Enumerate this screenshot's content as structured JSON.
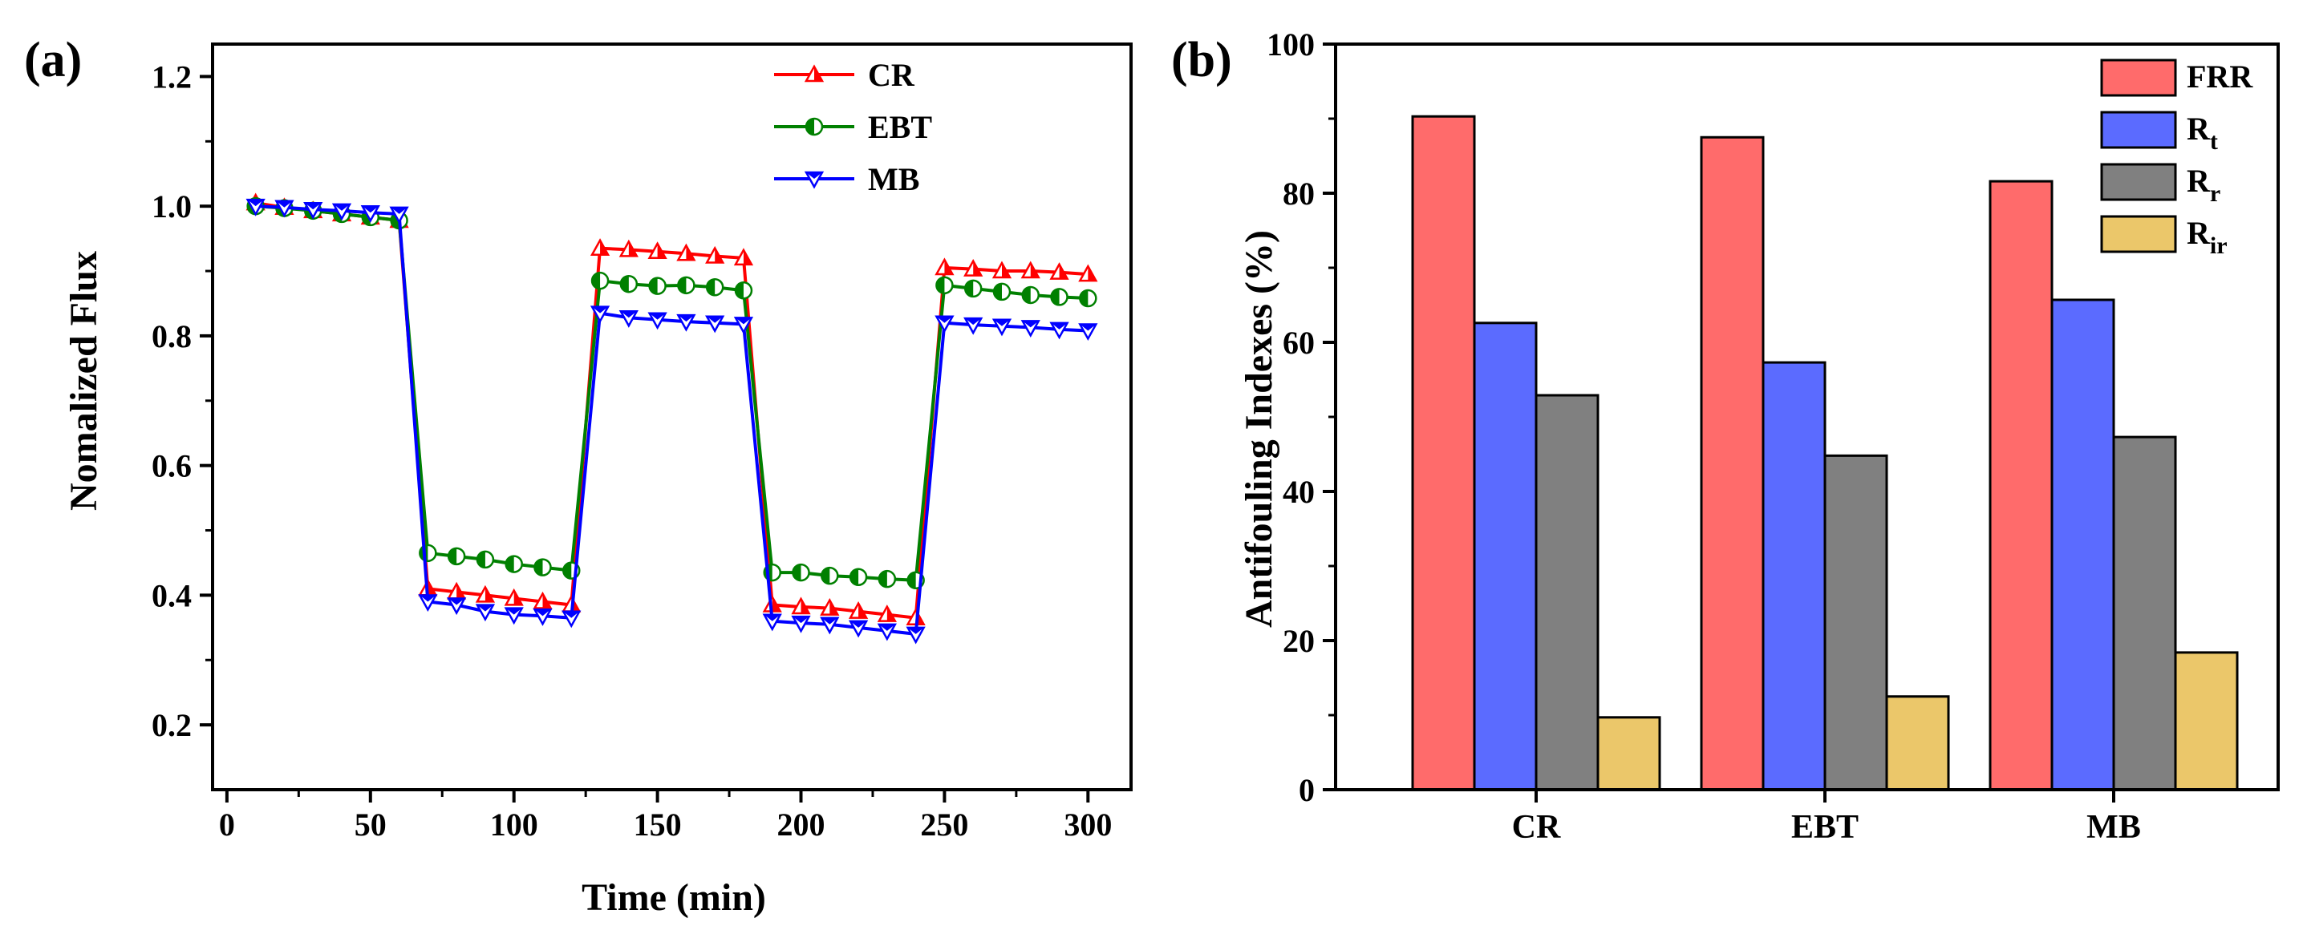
{
  "chart_data": [
    {
      "type": "line",
      "panel_label": "(a)",
      "xlabel": "Time (min)",
      "ylabel": "Nomalized Flux",
      "xlim": [
        -5,
        315
      ],
      "ylim": [
        0.1,
        1.25
      ],
      "x_ticks": [
        0,
        50,
        100,
        150,
        200,
        250,
        300
      ],
      "x_tick_labels": [
        "0",
        "50",
        "100",
        "150",
        "200",
        "250",
        "300"
      ],
      "y_ticks": [
        0.2,
        0.4,
        0.6,
        0.8,
        1.0,
        1.2
      ],
      "y_tick_labels": [
        "0.2",
        "0.4",
        "0.6",
        "0.8",
        "1.0",
        "1.2"
      ],
      "legend_position": "top-right",
      "series": [
        {
          "name": "CR",
          "color": "#ff0000",
          "marker": "triangle-up",
          "x": [
            10,
            20,
            30,
            40,
            50,
            60,
            70,
            80,
            90,
            100,
            110,
            120,
            130,
            140,
            150,
            160,
            170,
            180,
            190,
            200,
            210,
            220,
            230,
            240,
            250,
            260,
            270,
            280,
            290,
            300
          ],
          "y": [
            1.005,
            0.998,
            0.993,
            0.988,
            0.983,
            0.978,
            0.41,
            0.405,
            0.4,
            0.395,
            0.39,
            0.385,
            0.935,
            0.933,
            0.93,
            0.927,
            0.923,
            0.92,
            0.385,
            0.382,
            0.38,
            0.375,
            0.37,
            0.365,
            0.905,
            0.903,
            0.9,
            0.9,
            0.898,
            0.895
          ]
        },
        {
          "name": "EBT",
          "color": "#008000",
          "marker": "circle-half",
          "x": [
            10,
            20,
            30,
            40,
            50,
            60,
            70,
            80,
            90,
            100,
            110,
            120,
            130,
            140,
            150,
            160,
            170,
            180,
            190,
            200,
            210,
            220,
            230,
            240,
            250,
            260,
            270,
            280,
            290,
            300
          ],
          "y": [
            1.0,
            0.997,
            0.993,
            0.988,
            0.983,
            0.978,
            0.465,
            0.46,
            0.455,
            0.448,
            0.443,
            0.438,
            0.885,
            0.88,
            0.877,
            0.878,
            0.875,
            0.87,
            0.435,
            0.435,
            0.43,
            0.428,
            0.425,
            0.423,
            0.878,
            0.873,
            0.868,
            0.863,
            0.86,
            0.858
          ]
        },
        {
          "name": "MB",
          "color": "#0000ff",
          "marker": "triangle-down",
          "x": [
            10,
            20,
            30,
            40,
            50,
            60,
            70,
            80,
            90,
            100,
            110,
            120,
            130,
            140,
            150,
            160,
            170,
            180,
            190,
            200,
            210,
            220,
            230,
            240,
            250,
            260,
            270,
            280,
            290,
            300
          ],
          "y": [
            1.0,
            0.998,
            0.995,
            0.993,
            0.99,
            0.988,
            0.39,
            0.385,
            0.375,
            0.37,
            0.368,
            0.365,
            0.835,
            0.828,
            0.825,
            0.822,
            0.82,
            0.818,
            0.36,
            0.357,
            0.355,
            0.35,
            0.345,
            0.34,
            0.82,
            0.817,
            0.815,
            0.813,
            0.81,
            0.808
          ]
        }
      ]
    },
    {
      "type": "bar",
      "panel_label": "(b)",
      "xlabel": "",
      "ylabel": "Antifouling Indexes (%)",
      "ylim": [
        0,
        100
      ],
      "y_ticks": [
        0,
        20,
        40,
        60,
        80,
        100
      ],
      "y_tick_labels": [
        "0",
        "20",
        "40",
        "60",
        "80",
        "100"
      ],
      "categories": [
        "CR",
        "EBT",
        "MB"
      ],
      "legend_position": "top-right",
      "series": [
        {
          "name": "FRR",
          "legend_main": "FRR",
          "legend_sub": "",
          "color": "#ff6b6b",
          "values": [
            90.3,
            87.5,
            81.6
          ]
        },
        {
          "name": "Rt",
          "legend_main": "R",
          "legend_sub": "t",
          "color": "#5b6bff",
          "values": [
            62.6,
            57.3,
            65.7
          ]
        },
        {
          "name": "Rr",
          "legend_main": "R",
          "legend_sub": "r",
          "color": "#808080",
          "values": [
            52.9,
            44.8,
            47.3
          ]
        },
        {
          "name": "Rir",
          "legend_main": "R",
          "legend_sub": "ir",
          "color": "#ebc76a",
          "values": [
            9.7,
            12.5,
            18.4
          ]
        }
      ]
    }
  ]
}
